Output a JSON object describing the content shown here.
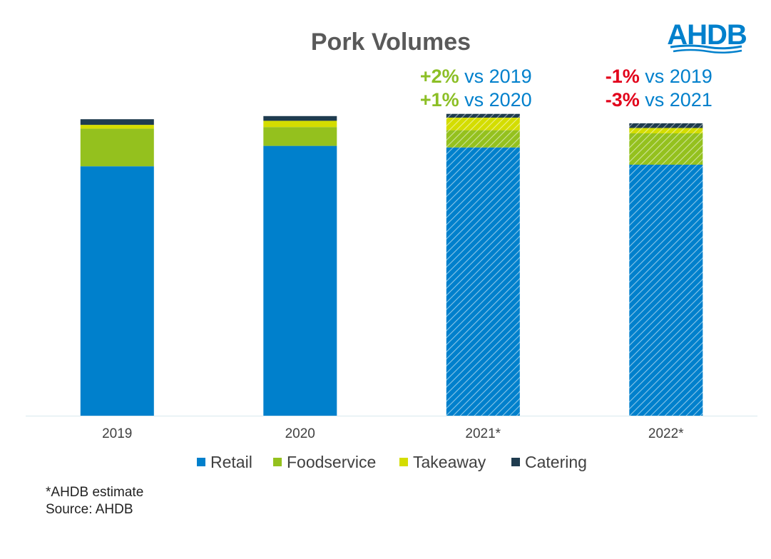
{
  "chart_data": {
    "type": "bar",
    "stacked": true,
    "title": "Pork Volumes",
    "categories": [
      "2019",
      "2020",
      "2021*",
      "2022*"
    ],
    "estimated_categories": [
      "2021*",
      "2022*"
    ],
    "series": [
      {
        "name": "Retail",
        "color": "#0080cc",
        "values": [
          79.5,
          86.0,
          85.5,
          80.0
        ]
      },
      {
        "name": "Foodservice",
        "color": "#94c11e",
        "values": [
          12.0,
          6.0,
          5.5,
          10.0
        ]
      },
      {
        "name": "Takeaway",
        "color": "#d4dd00",
        "values": [
          1.2,
          2.0,
          4.0,
          1.7
        ]
      },
      {
        "name": "Catering",
        "color": "#1f3c4f",
        "values": [
          1.8,
          1.5,
          1.2,
          1.5
        ]
      }
    ],
    "ylim": [
      0,
      100
    ],
    "xlabel": "",
    "ylabel": "",
    "legend_position": "bottom",
    "annotations": [
      {
        "category": "2021*",
        "lines": [
          {
            "value": "+2%",
            "value_color": "#8cbf26",
            "text": " vs 2019"
          },
          {
            "value": "+1%",
            "value_color": "#8cbf26",
            "text": " vs 2020"
          }
        ]
      },
      {
        "category": "2022*",
        "lines": [
          {
            "value": "-1%",
            "value_color": "#e2001a",
            "text": " vs 2019"
          },
          {
            "value": "-3%",
            "value_color": "#e2001a",
            "text": " vs 2021"
          }
        ]
      }
    ]
  },
  "logo": {
    "text": "AHDB",
    "color": "#0080cc"
  },
  "notes": {
    "estimate": "*AHDB estimate",
    "source": "Source: AHDB"
  }
}
